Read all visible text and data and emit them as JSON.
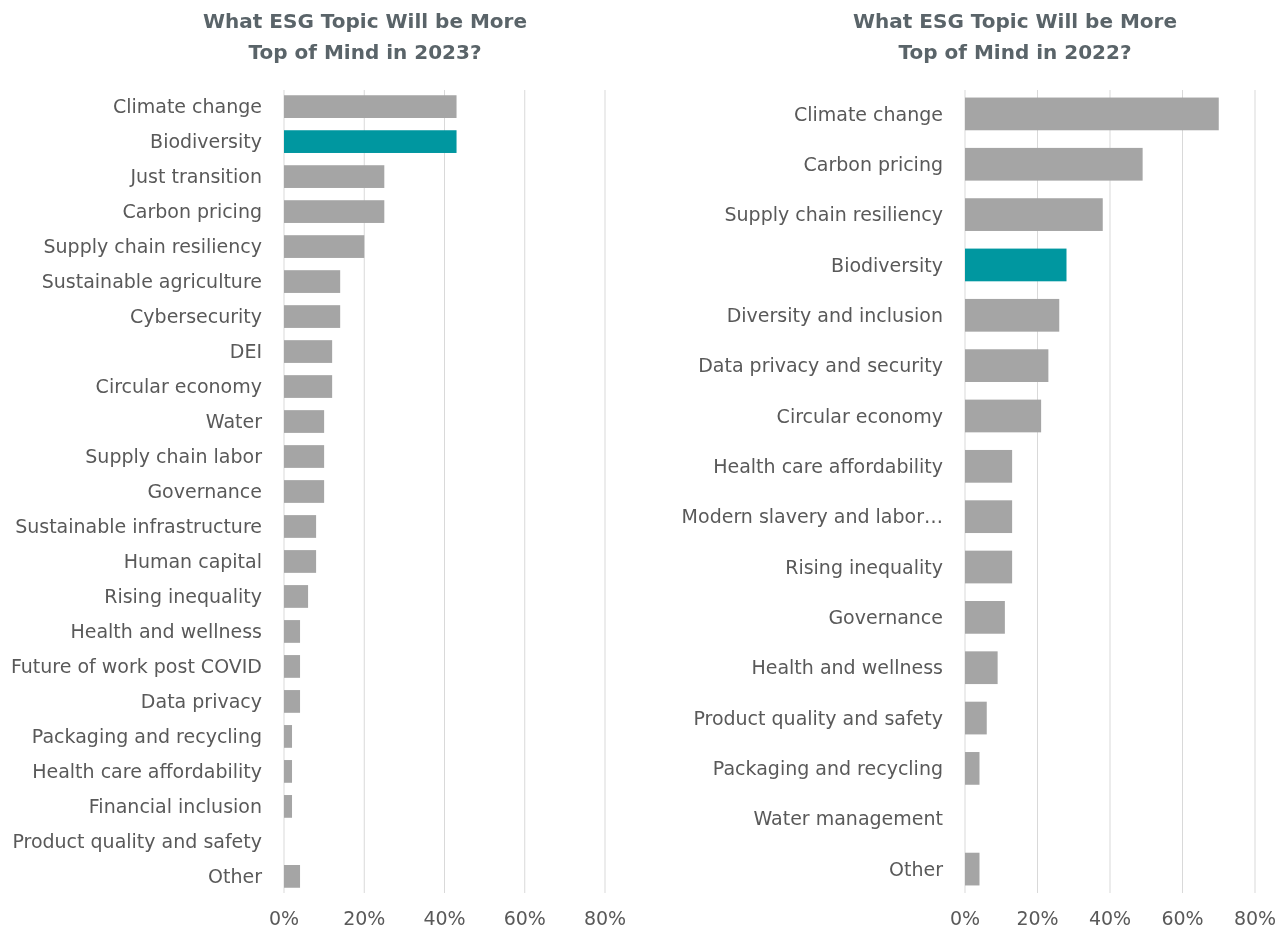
{
  "chart_data": [
    {
      "type": "bar",
      "orientation": "horizontal",
      "title": "What ESG Topic Will be More\nTop of Mind in 2023?",
      "categories": [
        "Climate change",
        "Biodiversity",
        "Just transition",
        "Carbon pricing",
        "Supply chain resiliency",
        "Sustainable agriculture",
        "Cybersecurity",
        "DEI",
        "Circular economy",
        "Water",
        "Supply chain labor",
        "Governance",
        "Sustainable infrastructure",
        "Human capital",
        "Rising inequality",
        "Health and wellness",
        "Future of work post COVID",
        "Data privacy",
        "Packaging and recycling",
        "Health care affordability",
        "Financial inclusion",
        "Product quality and safety",
        "Other"
      ],
      "values": [
        43,
        43,
        25,
        25,
        20,
        14,
        14,
        12,
        12,
        10,
        10,
        10,
        8,
        8,
        6,
        4,
        4,
        4,
        2,
        2,
        2,
        0,
        4
      ],
      "colors": [
        "#a5a5a5",
        "#0097a0",
        "#a5a5a5",
        "#a5a5a5",
        "#a5a5a5",
        "#a5a5a5",
        "#a5a5a5",
        "#a5a5a5",
        "#a5a5a5",
        "#a5a5a5",
        "#a5a5a5",
        "#a5a5a5",
        "#a5a5a5",
        "#a5a5a5",
        "#a5a5a5",
        "#a5a5a5",
        "#a5a5a5",
        "#a5a5a5",
        "#a5a5a5",
        "#a5a5a5",
        "#a5a5a5",
        "#a5a5a5",
        "#a5a5a5"
      ],
      "xlim": [
        0,
        80
      ],
      "xticks": [
        {
          "value": 0,
          "label": "0%"
        },
        {
          "value": 20,
          "label": "20%"
        },
        {
          "value": 40,
          "label": "40%"
        },
        {
          "value": 60,
          "label": "60%"
        },
        {
          "value": 80,
          "label": "80%"
        }
      ],
      "grid": "x"
    },
    {
      "type": "bar",
      "orientation": "horizontal",
      "title": "What ESG Topic Will be More\nTop of Mind in 2022?",
      "categories": [
        "Climate change",
        "Carbon pricing",
        "Supply chain resiliency",
        "Biodiversity",
        "Diversity and inclusion",
        "Data privacy and security",
        "Circular economy",
        "Health care affordability",
        "Modern slavery and labor…",
        "Rising inequality",
        "Governance",
        "Health and wellness",
        "Product quality and safety",
        "Packaging and recycling",
        "Water management",
        "Other"
      ],
      "values": [
        70,
        49,
        38,
        28,
        26,
        23,
        21,
        13,
        13,
        13,
        11,
        9,
        6,
        4,
        0,
        4
      ],
      "colors": [
        "#a5a5a5",
        "#a5a5a5",
        "#a5a5a5",
        "#0097a0",
        "#a5a5a5",
        "#a5a5a5",
        "#a5a5a5",
        "#a5a5a5",
        "#a5a5a5",
        "#a5a5a5",
        "#a5a5a5",
        "#a5a5a5",
        "#a5a5a5",
        "#a5a5a5",
        "#a5a5a5",
        "#a5a5a5"
      ],
      "xlim": [
        0,
        80
      ],
      "xticks": [
        {
          "value": 0,
          "label": "0%"
        },
        {
          "value": 20,
          "label": "20%"
        },
        {
          "value": 40,
          "label": "40%"
        },
        {
          "value": 60,
          "label": "60%"
        },
        {
          "value": 80,
          "label": "80%"
        }
      ],
      "grid": "x"
    }
  ]
}
